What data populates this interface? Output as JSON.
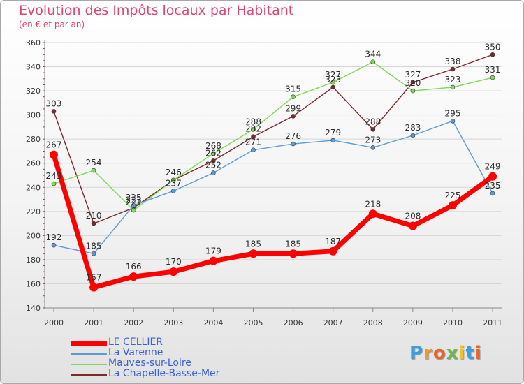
{
  "title": "Evolution des Impôts locaux par Habitant",
  "subtitle": "(en € et par an)",
  "logo": "Proxiti",
  "chart_data": {
    "type": "line",
    "title": "Evolution des Impôts locaux par Habitant",
    "subtitle": "(en € et par an)",
    "xlabel": "",
    "ylabel": "",
    "x": [
      "2000",
      "2001",
      "2002",
      "2003",
      "2004",
      "2005",
      "2006",
      "2007",
      "2008",
      "2009",
      "2010",
      "2011"
    ],
    "ylim": [
      140,
      360
    ],
    "yticks": [
      140,
      160,
      180,
      200,
      220,
      240,
      260,
      280,
      300,
      320,
      340,
      360
    ],
    "grid": "horizontal",
    "legend_position": "bottom-left",
    "series": [
      {
        "name": "LE CELLIER",
        "color": "#ff0000",
        "values": [
          267,
          157,
          166,
          170,
          179,
          185,
          185,
          187,
          218,
          208,
          225,
          249
        ]
      },
      {
        "name": "La Varenne",
        "color": "#5d9bd5",
        "values": [
          192,
          185,
          225,
          237,
          252,
          271,
          276,
          279,
          273,
          283,
          295,
          235
        ]
      },
      {
        "name": "Mauves-sur-Loire",
        "color": "#7ed957",
        "values": [
          243,
          254,
          221,
          246,
          268,
          288,
          315,
          327,
          344,
          320,
          323,
          331
        ]
      },
      {
        "name": "La Chapelle-Basse-Mer",
        "color": "#7a2a2a",
        "values": [
          303,
          210,
          223,
          246,
          262,
          282,
          299,
          323,
          288,
          327,
          338,
          350
        ]
      }
    ]
  }
}
